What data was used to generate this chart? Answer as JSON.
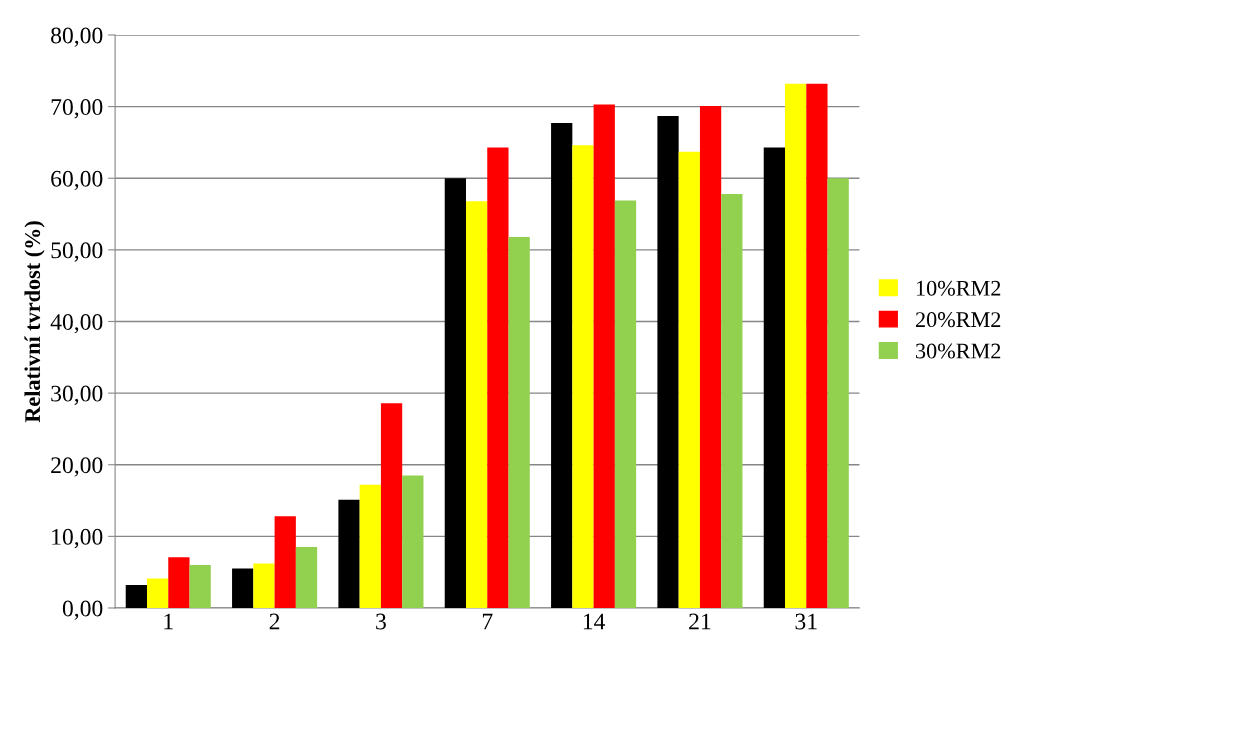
{
  "chart_data": {
    "type": "bar",
    "ylabel": "Relativní tvrdost (%)",
    "categories": [
      "1",
      "2",
      "3",
      "7",
      "14",
      "21",
      "31"
    ],
    "series": [
      {
        "color": "#000000",
        "values": [
          3.2,
          5.5,
          15.1,
          60.0,
          67.7,
          68.7,
          64.3
        ]
      },
      {
        "name": "10%RM2",
        "color": "#ffff00",
        "values": [
          4.1,
          6.2,
          17.2,
          56.8,
          64.6,
          63.7,
          73.2
        ]
      },
      {
        "name": "20%RM2",
        "color": "#ff0000",
        "values": [
          7.1,
          12.8,
          28.6,
          64.3,
          70.3,
          70.1,
          73.2
        ]
      },
      {
        "name": "30%RM2",
        "color": "#92d050",
        "values": [
          6.0,
          8.5,
          18.5,
          51.8,
          56.9,
          57.8,
          60.0
        ]
      }
    ],
    "ylim": [
      0,
      80
    ],
    "yticks": [
      {
        "value": 0,
        "label": "0,00"
      },
      {
        "value": 10,
        "label": "10,00"
      },
      {
        "value": 20,
        "label": "20,00"
      },
      {
        "value": 30,
        "label": "30,00"
      },
      {
        "value": 40,
        "label": "40,00"
      },
      {
        "value": 50,
        "label": "50,00"
      },
      {
        "value": 60,
        "label": "60,00"
      },
      {
        "value": 70,
        "label": "70,00"
      },
      {
        "value": 80,
        "label": "80,00"
      }
    ],
    "grid": "y",
    "legend": "right"
  }
}
